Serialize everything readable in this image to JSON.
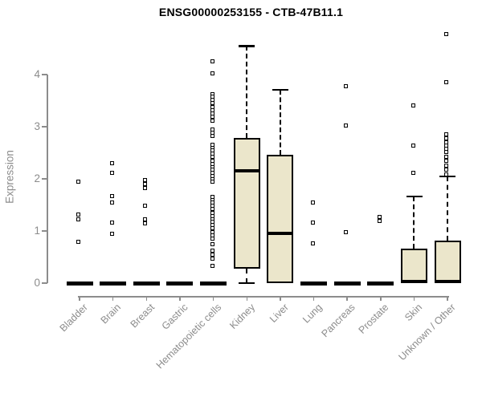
{
  "page": {
    "background": "#ffffff"
  },
  "chart_data": {
    "type": "boxplot",
    "title": "ENSG00000253155 - CTB-47B11.1",
    "ylabel": "Expression",
    "xlabel": "",
    "yticks": [
      0,
      1,
      2,
      3,
      4
    ],
    "ylim": [
      -0.25,
      4.9
    ],
    "grid": false,
    "legend": "none",
    "box_fill": "#EBE6CB",
    "box_border": "#000000",
    "axis_color": "#8c8c8c",
    "title_color": "#000000",
    "categories": [
      "Bladder",
      "Brain",
      "Breast",
      "Gastric",
      "Hematopoietic cells",
      "Kidney",
      "Liver",
      "Lung",
      "Pancreas",
      "Prostate",
      "Skin",
      "Unknown / Other"
    ],
    "series": [
      {
        "category": "Bladder",
        "q1": 0,
        "median": 0,
        "q3": 0,
        "whisker_low": 0,
        "whisker_high": 0,
        "outliers": [
          1.95,
          1.31,
          1.23,
          0.79
        ]
      },
      {
        "category": "Brain",
        "q1": 0,
        "median": 0,
        "q3": 0,
        "whisker_low": 0,
        "whisker_high": 0,
        "outliers": [
          2.3,
          2.12,
          1.67,
          1.55,
          1.16,
          0.94
        ]
      },
      {
        "category": "Breast",
        "q1": 0,
        "median": 0,
        "q3": 0,
        "whisker_low": 0,
        "whisker_high": 0,
        "outliers": [
          1.97,
          1.9,
          1.82,
          1.48,
          1.23,
          1.14
        ]
      },
      {
        "category": "Gastric",
        "q1": 0,
        "median": 0,
        "q3": 0,
        "whisker_low": 0,
        "whisker_high": 0,
        "outliers": []
      },
      {
        "category": "Hematopoietic cells",
        "q1": 0,
        "median": 0,
        "q3": 0,
        "whisker_low": 0,
        "whisker_high": 0,
        "outliers": [
          4.25,
          4.02,
          3.63,
          3.57,
          3.51,
          3.45,
          3.38,
          3.32,
          3.26,
          3.19,
          3.12,
          2.94,
          2.89,
          2.82,
          2.66,
          2.6,
          2.54,
          2.48,
          2.42,
          2.35,
          2.29,
          2.23,
          2.17,
          2.11,
          2.05,
          1.99,
          1.94,
          1.66,
          1.6,
          1.54,
          1.48,
          1.42,
          1.35,
          1.29,
          1.23,
          1.17,
          1.11,
          1.05,
          0.97,
          0.92,
          0.85,
          0.75,
          0.63,
          0.55,
          0.47,
          0.33
        ]
      },
      {
        "category": "Kidney",
        "q1": 0.28,
        "median": 2.15,
        "q3": 2.78,
        "whisker_low": 0,
        "whisker_high": 4.55,
        "outliers": []
      },
      {
        "category": "Liver",
        "q1": 0,
        "median": 0.96,
        "q3": 2.46,
        "whisker_low": 0,
        "whisker_high": 3.71,
        "outliers": []
      },
      {
        "category": "Lung",
        "q1": 0,
        "median": 0,
        "q3": 0,
        "whisker_low": 0,
        "whisker_high": 0,
        "outliers": [
          1.55,
          1.16,
          0.76
        ]
      },
      {
        "category": "Pancreas",
        "q1": 0,
        "median": 0,
        "q3": 0,
        "whisker_low": 0,
        "whisker_high": 0,
        "outliers": [
          3.78,
          3.02,
          0.97
        ]
      },
      {
        "category": "Prostate",
        "q1": 0,
        "median": 0,
        "q3": 0,
        "whisker_low": 0,
        "whisker_high": 0,
        "outliers": [
          1.27,
          1.19
        ]
      },
      {
        "category": "Skin",
        "q1": 0,
        "median": 0.03,
        "q3": 0.66,
        "whisker_low": 0,
        "whisker_high": 1.66,
        "outliers": [
          3.41,
          2.64,
          2.11
        ]
      },
      {
        "category": "Unknown / Other",
        "q1": 0,
        "median": 0.03,
        "q3": 0.82,
        "whisker_low": 0,
        "whisker_high": 2.05,
        "outliers": [
          4.77,
          3.86,
          2.85,
          2.78,
          2.7,
          2.64,
          2.58,
          2.52,
          2.43,
          2.34,
          2.25,
          2.17,
          2.08
        ]
      }
    ]
  }
}
